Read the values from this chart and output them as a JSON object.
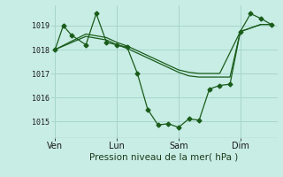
{
  "bg_color": "#c8ede5",
  "plot_bg_color": "#c8ede5",
  "grid_color": "#a8d5cc",
  "line_color": "#1a5c1a",
  "marker_color": "#1a5c1a",
  "title": "Pression niveau de la mer( hPa )",
  "yticks": [
    1015,
    1016,
    1017,
    1018,
    1019
  ],
  "ylim": [
    1014.3,
    1019.85
  ],
  "xtick_labels": [
    "Ven",
    "Lun",
    "Sam",
    "Dim"
  ],
  "xtick_positions": [
    0,
    3,
    6,
    9
  ],
  "vline_positions": [
    0,
    3,
    6,
    9
  ],
  "xlim": [
    -0.2,
    10.8
  ],
  "series1_x": [
    0.0,
    0.4,
    0.8,
    1.5,
    2.0,
    2.5,
    3.0,
    3.5,
    4.0,
    4.5,
    5.0,
    5.5,
    6.0,
    6.5,
    7.0,
    7.5,
    8.0,
    8.5,
    9.0,
    9.5,
    10.0,
    10.5
  ],
  "series1_y": [
    1018.0,
    1019.0,
    1018.6,
    1018.2,
    1019.5,
    1018.3,
    1018.2,
    1018.1,
    1017.0,
    1015.5,
    1014.85,
    1014.9,
    1014.75,
    1015.1,
    1015.05,
    1016.35,
    1016.5,
    1016.55,
    1018.75,
    1019.5,
    1019.3,
    1019.05
  ],
  "series2_x": [
    0.0,
    1.5,
    2.5,
    3.0,
    3.5,
    4.0,
    4.5,
    5.0,
    5.5,
    6.0,
    6.5,
    7.0,
    8.0,
    8.5,
    9.0,
    10.0,
    10.5
  ],
  "series2_y": [
    1018.0,
    1018.55,
    1018.4,
    1018.2,
    1018.05,
    1017.85,
    1017.65,
    1017.45,
    1017.25,
    1017.05,
    1016.9,
    1016.85,
    1016.85,
    1016.85,
    1018.75,
    1019.05,
    1019.05
  ],
  "series3_x": [
    0.0,
    1.5,
    2.5,
    3.0,
    3.5,
    4.0,
    4.5,
    5.0,
    5.5,
    6.0,
    6.5,
    7.0,
    8.0,
    9.0,
    10.0,
    10.5
  ],
  "series3_y": [
    1018.0,
    1018.65,
    1018.5,
    1018.3,
    1018.15,
    1017.95,
    1017.75,
    1017.55,
    1017.35,
    1017.15,
    1017.05,
    1017.0,
    1017.0,
    1018.75,
    1019.05,
    1019.05
  ]
}
